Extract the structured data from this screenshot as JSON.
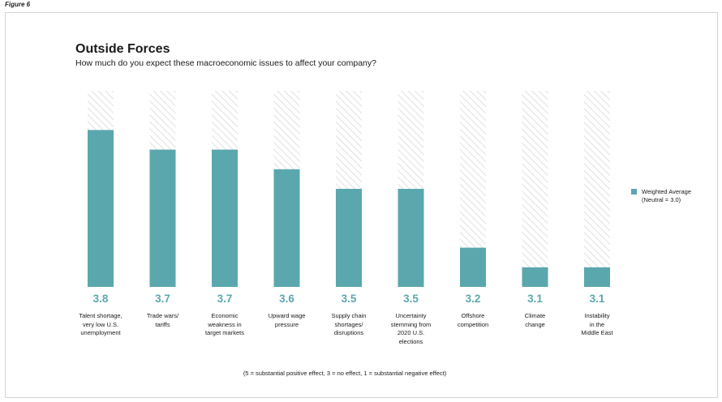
{
  "figure_label": "Figure 6",
  "title": "Outside Forces",
  "subtitle": "How much do you expect these macroeconomic issues to affect your company?",
  "legend": {
    "label": "Weighted Average\n(Neutral = 3.0)"
  },
  "footnote": "(5 = substantial positive effect, 3 = no effect, 1 = substantial negative effect)",
  "colors": {
    "bar": "#5ba7ae",
    "hatch": "#d9d9d9"
  },
  "chart_data": {
    "type": "bar",
    "categories": [
      "Talent shortage,\nvery low U.S.\nunemployment",
      "Trade wars/\ntariffs",
      "Economic\nweakness in\ntarget markets",
      "Upward wage\npressure",
      "Supply chain\nshortages/\ndisruptions",
      "Uncertainty\nstemming from\n2020 U.S.\nelections",
      "Offshore\ncompetition",
      "Climate\nchange",
      "Instability\nin the\nMiddle East"
    ],
    "series": [
      {
        "name": "Weighted Average",
        "values": [
          3.8,
          3.7,
          3.7,
          3.6,
          3.5,
          3.5,
          3.2,
          3.1,
          3.1
        ],
        "labels": [
          "3.8",
          "3.7",
          "3.7",
          "3.6",
          "3.5",
          "3.5",
          "3.2",
          "3.1",
          "3.1"
        ]
      }
    ],
    "ylim": [
      3.0,
      4.0
    ],
    "grid": false,
    "legend_position": "right"
  }
}
